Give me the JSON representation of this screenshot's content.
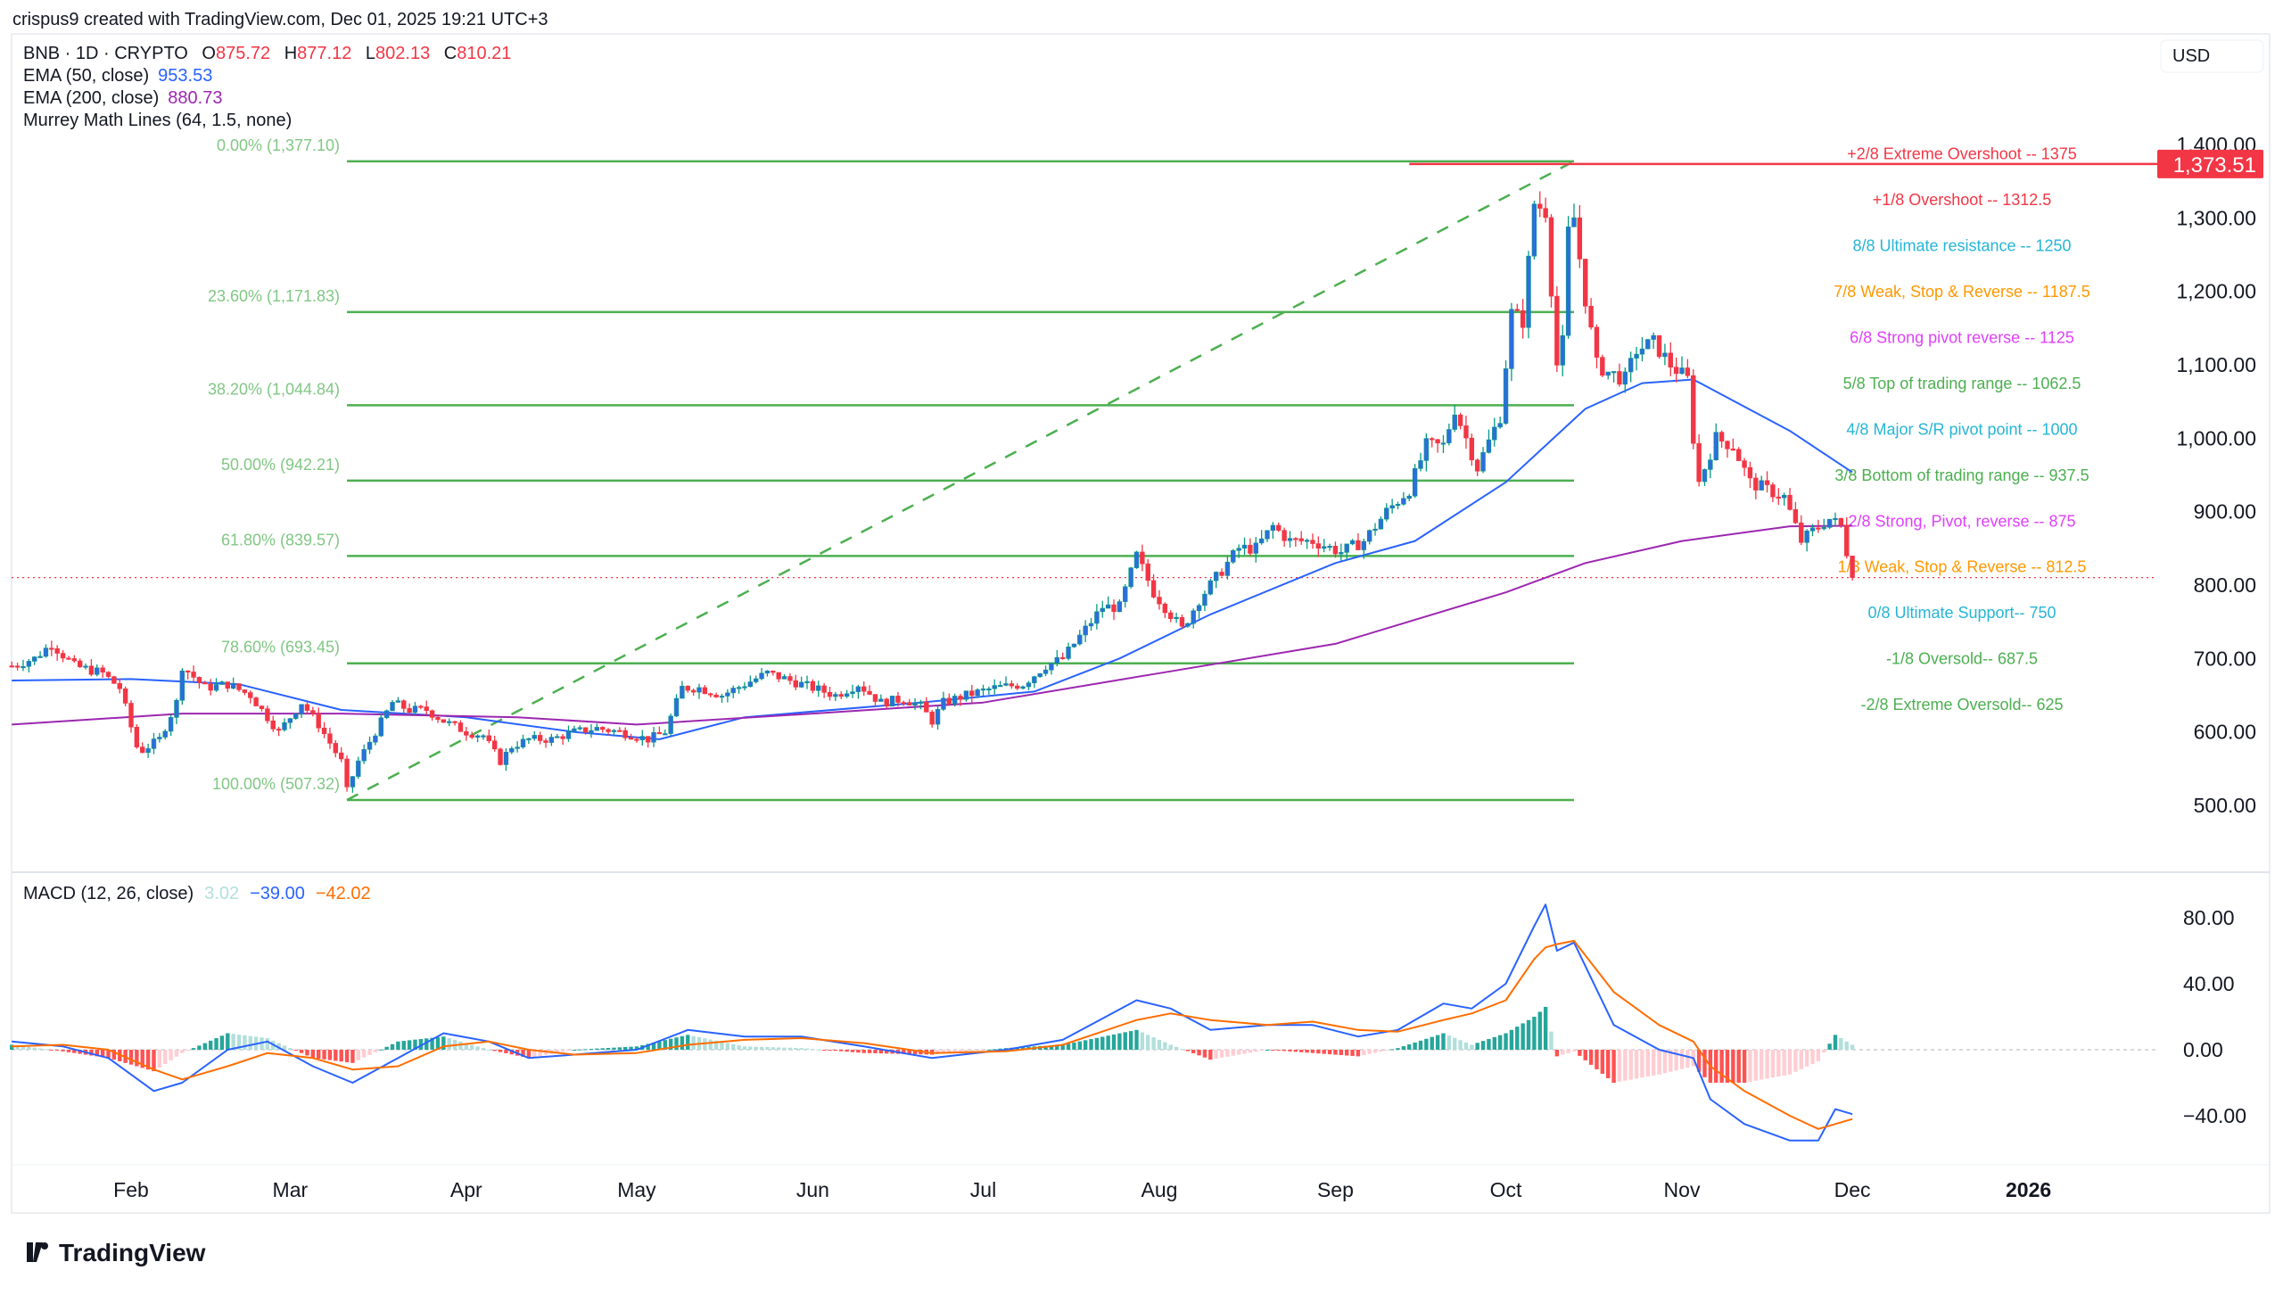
{
  "attribution": "crispus9 created with TradingView.com, Dec 01, 2025 19:21 UTC+3",
  "legend": {
    "symbol": "BNB · 1D · CRYPTO",
    "open_label": "O",
    "open": "875.72",
    "high_label": "H",
    "high": "877.12",
    "low_label": "L",
    "low": "802.13",
    "close_label": "C",
    "close": "810.21",
    "ema50_label": "EMA (50, close)",
    "ema50_value": "953.53",
    "ema200_label": "EMA (200, close)",
    "ema200_value": "880.73",
    "murrey_label": "Murrey Math Lines (64, 1.5, none)"
  },
  "currency": "USD",
  "last_price_badge": "1,373.51",
  "macd_legend": {
    "label": "MACD (12, 26, close)",
    "hist": "3.02",
    "macd": "−39.00",
    "signal": "−42.02"
  },
  "logo_text": "TradingView",
  "colors": {
    "up_body": "#2a6fdb",
    "up_wick": "#089981",
    "down": "#f23645",
    "ema50": "#2962ff",
    "ema200": "#9c27b0",
    "fib": "#4caf50",
    "macd": "#2962ff",
    "signal": "#ff6d00"
  },
  "chart_data": [
    {
      "type": "candlestick",
      "price_axis_ticks": [
        "1,400.00",
        "1,300.00",
        "1,200.00",
        "1,100.00",
        "1,000.00",
        "900.00",
        "800.00",
        "700.00",
        "600.00",
        "500.00"
      ],
      "price_axis_values": [
        1400,
        1300,
        1200,
        1100,
        1000,
        900,
        800,
        700,
        600,
        500
      ],
      "ylim": [
        470,
        1440
      ],
      "time_axis_ticks": [
        "Feb",
        "Mar",
        "Apr",
        "May",
        "Jun",
        "Jul",
        "Aug",
        "Sep",
        "Oct",
        "Nov",
        "Dec",
        "2026"
      ],
      "time_axis_dates": [
        "2025-02-01",
        "2025-03-01",
        "2025-04-01",
        "2025-05-01",
        "2025-06-01",
        "2025-07-01",
        "2025-08-01",
        "2025-09-01",
        "2025-10-01",
        "2025-11-01",
        "2025-12-01",
        "2026-01-01"
      ],
      "close_path": [
        [
          "2025-01-11",
          690
        ],
        [
          "2025-01-15",
          700
        ],
        [
          "2025-01-18",
          720
        ],
        [
          "2025-01-22",
          690
        ],
        [
          "2025-01-27",
          680
        ],
        [
          "2025-01-30",
          660
        ],
        [
          "2025-02-02",
          580
        ],
        [
          "2025-02-03",
          575
        ],
        [
          "2025-02-06",
          590
        ],
        [
          "2025-02-09",
          640
        ],
        [
          "2025-02-10",
          690
        ],
        [
          "2025-02-14",
          660
        ],
        [
          "2025-02-18",
          665
        ],
        [
          "2025-02-22",
          650
        ],
        [
          "2025-02-24",
          630
        ],
        [
          "2025-02-27",
          600
        ],
        [
          "2025-03-03",
          640
        ],
        [
          "2025-03-06",
          610
        ],
        [
          "2025-03-10",
          560
        ],
        [
          "2025-03-11",
          520
        ],
        [
          "2025-03-13",
          560
        ],
        [
          "2025-03-16",
          600
        ],
        [
          "2025-03-19",
          640
        ],
        [
          "2025-03-22",
          630
        ],
        [
          "2025-03-25",
          630
        ],
        [
          "2025-03-28",
          615
        ],
        [
          "2025-04-01",
          600
        ],
        [
          "2025-04-04",
          595
        ],
        [
          "2025-04-07",
          560
        ],
        [
          "2025-04-09",
          580
        ],
        [
          "2025-04-12",
          590
        ],
        [
          "2025-04-16",
          590
        ],
        [
          "2025-04-20",
          600
        ],
        [
          "2025-04-24",
          605
        ],
        [
          "2025-04-28",
          600
        ],
        [
          "2025-05-03",
          590
        ],
        [
          "2025-05-06",
          600
        ],
        [
          "2025-05-09",
          660
        ],
        [
          "2025-05-12",
          660
        ],
        [
          "2025-05-16",
          650
        ],
        [
          "2025-05-20",
          665
        ],
        [
          "2025-05-24",
          680
        ],
        [
          "2025-05-28",
          670
        ],
        [
          "2025-06-01",
          660
        ],
        [
          "2025-06-05",
          650
        ],
        [
          "2025-06-09",
          665
        ],
        [
          "2025-06-13",
          640
        ],
        [
          "2025-06-17",
          645
        ],
        [
          "2025-06-20",
          635
        ],
        [
          "2025-06-22",
          615
        ],
        [
          "2025-06-24",
          640
        ],
        [
          "2025-06-28",
          650
        ],
        [
          "2025-07-03",
          660
        ],
        [
          "2025-07-08",
          665
        ],
        [
          "2025-07-12",
          690
        ],
        [
          "2025-07-15",
          700
        ],
        [
          "2025-07-18",
          730
        ],
        [
          "2025-07-22",
          770
        ],
        [
          "2025-07-25",
          770
        ],
        [
          "2025-07-28",
          840
        ],
        [
          "2025-07-31",
          790
        ],
        [
          "2025-08-03",
          760
        ],
        [
          "2025-08-05",
          740
        ],
        [
          "2025-08-08",
          780
        ],
        [
          "2025-08-12",
          820
        ],
        [
          "2025-08-15",
          850
        ],
        [
          "2025-08-18",
          850
        ],
        [
          "2025-08-21",
          880
        ],
        [
          "2025-08-24",
          860
        ],
        [
          "2025-08-28",
          860
        ],
        [
          "2025-09-02",
          845
        ],
        [
          "2025-09-06",
          860
        ],
        [
          "2025-09-10",
          900
        ],
        [
          "2025-09-14",
          930
        ],
        [
          "2025-09-17",
          990
        ],
        [
          "2025-09-20",
          990
        ],
        [
          "2025-09-22",
          1040
        ],
        [
          "2025-09-24",
          1000
        ],
        [
          "2025-09-26",
          960
        ],
        [
          "2025-09-30",
          1030
        ],
        [
          "2025-10-02",
          1170
        ],
        [
          "2025-10-04",
          1160
        ],
        [
          "2025-10-06",
          1320
        ],
        [
          "2025-10-08",
          1310
        ],
        [
          "2025-10-10",
          1100
        ],
        [
          "2025-10-11",
          1130
        ],
        [
          "2025-10-12",
          1280
        ],
        [
          "2025-10-13",
          1300
        ],
        [
          "2025-10-15",
          1190
        ],
        [
          "2025-10-17",
          1100
        ],
        [
          "2025-10-19",
          1090
        ],
        [
          "2025-10-22",
          1080
        ],
        [
          "2025-10-24",
          1120
        ],
        [
          "2025-10-27",
          1130
        ],
        [
          "2025-10-30",
          1100
        ],
        [
          "2025-11-02",
          1080
        ],
        [
          "2025-11-03",
          1000
        ],
        [
          "2025-11-04",
          940
        ],
        [
          "2025-11-07",
          1000
        ],
        [
          "2025-11-10",
          990
        ],
        [
          "2025-11-13",
          940
        ],
        [
          "2025-11-16",
          930
        ],
        [
          "2025-11-19",
          920
        ],
        [
          "2025-11-21",
          880
        ],
        [
          "2025-11-22",
          860
        ],
        [
          "2025-11-25",
          880
        ],
        [
          "2025-11-27",
          890
        ],
        [
          "2025-11-29",
          880
        ],
        [
          "2025-12-01",
          810.21
        ]
      ],
      "ema50": [
        [
          "2025-01-11",
          670
        ],
        [
          "2025-02-01",
          672
        ],
        [
          "2025-02-20",
          665
        ],
        [
          "2025-03-10",
          630
        ],
        [
          "2025-04-01",
          620
        ],
        [
          "2025-04-20",
          600
        ],
        [
          "2025-05-05",
          590
        ],
        [
          "2025-05-20",
          620
        ],
        [
          "2025-06-20",
          640
        ],
        [
          "2025-07-10",
          655
        ],
        [
          "2025-07-25",
          700
        ],
        [
          "2025-08-10",
          760
        ],
        [
          "2025-09-01",
          830
        ],
        [
          "2025-09-15",
          860
        ],
        [
          "2025-10-01",
          940
        ],
        [
          "2025-10-15",
          1040
        ],
        [
          "2025-10-25",
          1075
        ],
        [
          "2025-11-03",
          1080
        ],
        [
          "2025-11-20",
          1010
        ],
        [
          "2025-12-01",
          953.53
        ]
      ],
      "ema200": [
        [
          "2025-01-11",
          610
        ],
        [
          "2025-02-10",
          625
        ],
        [
          "2025-03-10",
          625
        ],
        [
          "2025-04-10",
          620
        ],
        [
          "2025-05-01",
          610
        ],
        [
          "2025-06-01",
          625
        ],
        [
          "2025-07-01",
          640
        ],
        [
          "2025-08-01",
          680
        ],
        [
          "2025-09-01",
          720
        ],
        [
          "2025-10-01",
          790
        ],
        [
          "2025-10-15",
          830
        ],
        [
          "2025-11-01",
          860
        ],
        [
          "2025-11-20",
          880
        ],
        [
          "2025-12-01",
          880.73
        ]
      ],
      "fibonacci": {
        "start": [
          "2025-03-11",
          507.32
        ],
        "end": [
          "2025-10-13",
          1377.1
        ],
        "levels": [
          {
            "label": "0.00% (1,377.10)",
            "value": 1377.1
          },
          {
            "label": "23.60% (1,171.83)",
            "value": 1171.83
          },
          {
            "label": "38.20% (1,044.84)",
            "value": 1044.84
          },
          {
            "label": "50.00% (942.21)",
            "value": 942.21
          },
          {
            "label": "61.80% (839.57)",
            "value": 839.57
          },
          {
            "label": "78.60% (693.45)",
            "value": 693.45
          },
          {
            "label": "100.00% (507.32)",
            "value": 507.32
          }
        ]
      },
      "horizontal_line": {
        "value": 1373.51,
        "from": "2025-09-14",
        "color": "#f23645"
      },
      "last_close_line": 810.21,
      "murrey_levels": [
        {
          "label": "+2/8 Extreme Overshoot --  1375",
          "value": 1375,
          "color": "#f23645"
        },
        {
          "label": "+1/8 Overshoot --  1312.5",
          "value": 1312.5,
          "color": "#f23645"
        },
        {
          "label": "8/8 Ultimate resistance --  1250",
          "value": 1250,
          "color": "#26b5d6"
        },
        {
          "label": "7/8 Weak, Stop & Reverse --  1187.5",
          "value": 1187.5,
          "color": "#ff9800"
        },
        {
          "label": "6/8 Strong pivot reverse --  1125",
          "value": 1125,
          "color": "#e040fb"
        },
        {
          "label": "5/8 Top of trading range --  1062.5",
          "value": 1062.5,
          "color": "#4caf50"
        },
        {
          "label": "4/8 Major S/R pivot point --  1000",
          "value": 1000,
          "color": "#26b5d6"
        },
        {
          "label": "3/8 Bottom of trading range --  937.5",
          "value": 937.5,
          "color": "#4caf50"
        },
        {
          "label": "2/8 Strong, Pivot, reverse --  875",
          "value": 875,
          "color": "#e040fb"
        },
        {
          "label": "1/8 Weak, Stop & Reverse --  812.5",
          "value": 812.5,
          "color": "#ff9800"
        },
        {
          "label": "0/8 Ultimate Support--  750",
          "value": 750,
          "color": "#26b5d6"
        },
        {
          "label": "-1/8 Oversold--  687.5",
          "value": 687.5,
          "color": "#4caf50"
        },
        {
          "label": "-2/8 Extreme Oversold--  625",
          "value": 625,
          "color": "#4caf50"
        }
      ]
    },
    {
      "type": "line",
      "title": "MACD (12, 26, close)",
      "axis_ticks": [
        "80.00",
        "40.00",
        "0.00",
        "−40.00"
      ],
      "axis_values": [
        80,
        40,
        0,
        -40
      ],
      "macd_signal_path": [
        [
          "2025-01-11",
          5,
          2
        ],
        [
          "2025-01-20",
          2,
          3
        ],
        [
          "2025-01-28",
          -5,
          0
        ],
        [
          "2025-02-05",
          -25,
          -12
        ],
        [
          "2025-02-10",
          -20,
          -18
        ],
        [
          "2025-02-18",
          0,
          -10
        ],
        [
          "2025-02-25",
          5,
          -2
        ],
        [
          "2025-03-05",
          -10,
          -5
        ],
        [
          "2025-03-12",
          -20,
          -12
        ],
        [
          "2025-03-20",
          -5,
          -10
        ],
        [
          "2025-03-28",
          10,
          2
        ],
        [
          "2025-04-05",
          5,
          5
        ],
        [
          "2025-04-12",
          -5,
          0
        ],
        [
          "2025-04-20",
          -3,
          -3
        ],
        [
          "2025-05-01",
          0,
          -2
        ],
        [
          "2025-05-10",
          12,
          3
        ],
        [
          "2025-05-20",
          8,
          6
        ],
        [
          "2025-05-30",
          8,
          7
        ],
        [
          "2025-06-10",
          2,
          4
        ],
        [
          "2025-06-22",
          -5,
          -2
        ],
        [
          "2025-07-05",
          0,
          -1
        ],
        [
          "2025-07-15",
          6,
          3
        ],
        [
          "2025-07-28",
          30,
          18
        ],
        [
          "2025-08-03",
          25,
          22
        ],
        [
          "2025-08-10",
          12,
          18
        ],
        [
          "2025-08-20",
          15,
          15
        ],
        [
          "2025-08-28",
          15,
          17
        ],
        [
          "2025-09-05",
          8,
          12
        ],
        [
          "2025-09-12",
          12,
          11
        ],
        [
          "2025-09-20",
          28,
          18
        ],
        [
          "2025-09-25",
          25,
          22
        ],
        [
          "2025-10-01",
          40,
          30
        ],
        [
          "2025-10-06",
          75,
          55
        ],
        [
          "2025-10-08",
          88,
          62
        ],
        [
          "2025-10-10",
          60,
          64
        ],
        [
          "2025-10-13",
          65,
          66
        ],
        [
          "2025-10-20",
          15,
          35
        ],
        [
          "2025-10-28",
          0,
          15
        ],
        [
          "2025-11-03",
          -5,
          5
        ],
        [
          "2025-11-06",
          -30,
          -10
        ],
        [
          "2025-11-12",
          -45,
          -25
        ],
        [
          "2025-11-20",
          -55,
          -40
        ],
        [
          "2025-11-25",
          -55,
          -48
        ],
        [
          "2025-11-28",
          -36,
          -45
        ],
        [
          "2025-12-01",
          -39,
          -42.02
        ]
      ]
    }
  ]
}
